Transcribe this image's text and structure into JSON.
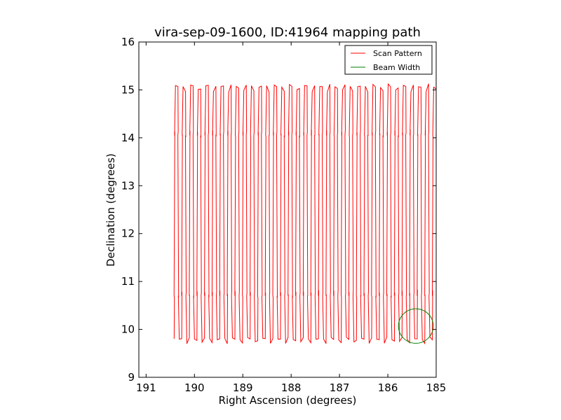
{
  "chart_data": {
    "type": "line",
    "title": "vira-sep-09-1600, ID:41964 mapping path",
    "xlabel": "Right Ascension (degrees)",
    "ylabel": "Declination (degrees)",
    "xlim": [
      191.15,
      185.0
    ],
    "ylim": [
      9,
      16
    ],
    "xticks": [
      191,
      190,
      189,
      188,
      187,
      186,
      185
    ],
    "yticks": [
      9,
      10,
      11,
      12,
      13,
      14,
      15,
      16
    ],
    "x_reversed": true,
    "grid": false,
    "legend_position": "top-right",
    "series": [
      {
        "name": "Scan Pattern",
        "color": "#ff0000",
        "scan_path": {
          "ra_start": 190.42,
          "ra_end": 185.0,
          "legs": 70,
          "dec_top": 15.05,
          "dec_bottom": 9.78,
          "dec_upper_kink": 14.1,
          "dec_lower_kink": 10.75
        }
      },
      {
        "name": "Beam Width",
        "color": "#008000",
        "circle": {
          "center_ra": 185.42,
          "center_dec": 10.07,
          "radius_deg": 0.36
        }
      }
    ]
  }
}
